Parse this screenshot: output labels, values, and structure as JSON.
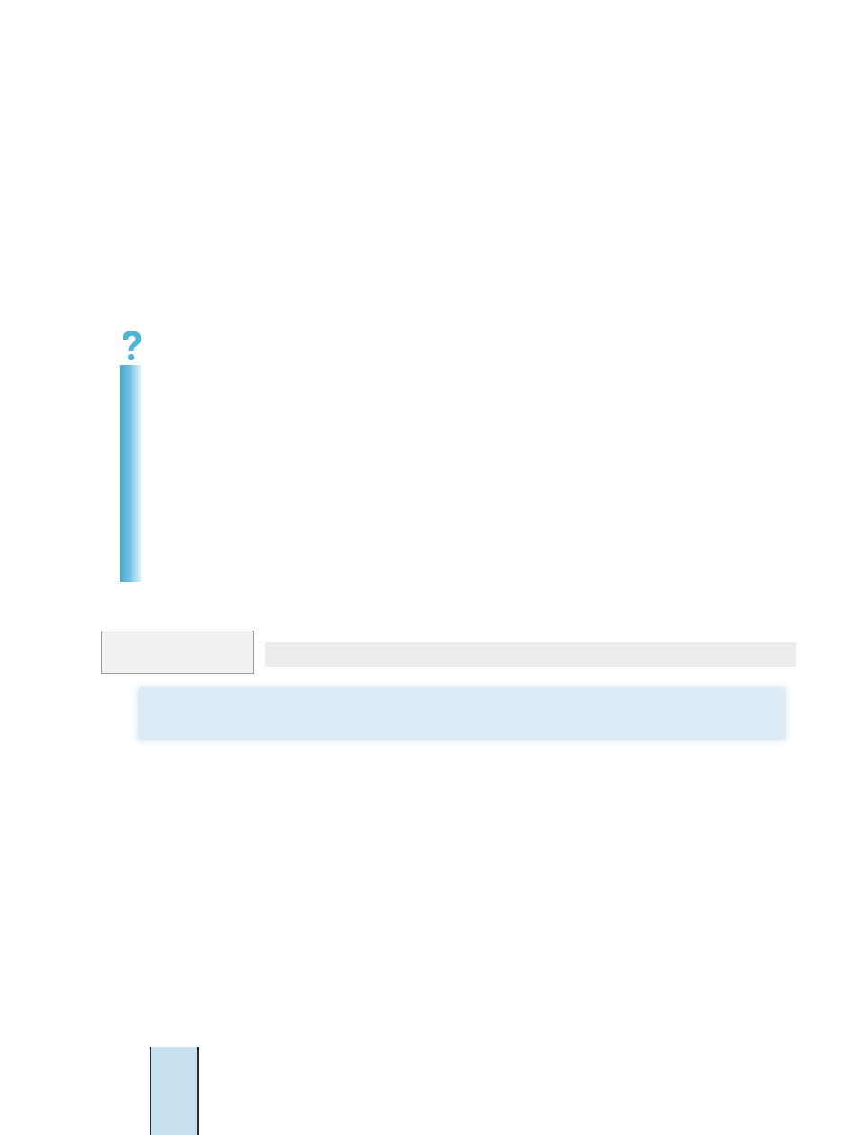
{
  "page": {
    "background": "#ffffff",
    "accent_color": "#4fb4d8",
    "icon": "question-mark-icon",
    "label_box": {
      "text": ""
    },
    "heading_strip": {
      "text": ""
    },
    "note_box": {
      "text": ""
    },
    "page_tab": {
      "number": ""
    }
  }
}
